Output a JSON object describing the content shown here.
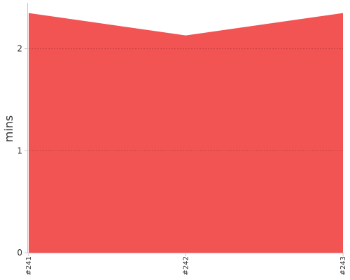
{
  "chart_data": {
    "type": "area",
    "categories": [
      "#241",
      "#242",
      "#243"
    ],
    "series": [
      {
        "values": [
          2.35,
          2.13,
          2.35
        ],
        "color": "#f25454"
      }
    ],
    "title": "",
    "xlabel": "",
    "ylabel": "mins",
    "ylim": [
      0,
      2.45
    ],
    "yticks": [
      0,
      1,
      2
    ],
    "grid": true,
    "legend": "none",
    "colors": {
      "fill": "#f25454",
      "gridline": "#c84040",
      "axis": "#c8c8c8",
      "text": "#333333"
    }
  }
}
